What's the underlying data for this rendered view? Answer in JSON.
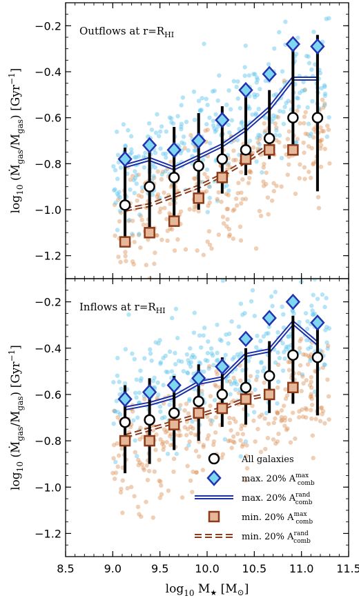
{
  "chart_data": {
    "type": "scatter",
    "x_axis": {
      "label_base": "log",
      "label_sub": "10",
      "label_var": "M",
      "label_star": "★",
      "label_unit_open": "[M",
      "label_unit_sub": "⊙",
      "label_unit_close": "]",
      "xlim": [
        8.5,
        11.5
      ],
      "ticks": [
        8.5,
        9.0,
        9.5,
        10.0,
        10.5,
        11.0,
        11.5
      ],
      "tick_labels": [
        "8.5",
        "9.0",
        "9.5",
        "10.0",
        "10.5",
        "11.0",
        "11.5"
      ]
    },
    "shared_ylabel": {
      "prefix": "log",
      "sub": "10",
      "body": "(Ṁ",
      "sub_gas1": "gas",
      "slash": "/M",
      "sub_gas2": "gas",
      "close": ")",
      "unit": "[Gyr",
      "unit_sup": "−1",
      "unit_close": "]"
    },
    "panels": [
      {
        "name": "outflows",
        "label_text": "Outflows at r=R",
        "label_sub": "HI",
        "ylim": [
          -1.3,
          -0.1
        ],
        "yticks": [
          -1.2,
          -1.0,
          -0.8,
          -0.6,
          -0.4,
          -0.2
        ],
        "ytick_labels": [
          "−1.2",
          "−1.0",
          "−0.8",
          "−0.6",
          "−0.4",
          "−0.2"
        ],
        "series": [
          {
            "name": "All galaxies",
            "marker": "open-circle",
            "x": [
              9.13,
              9.39,
              9.65,
              9.91,
              10.16,
              10.41,
              10.66,
              10.91,
              11.17
            ],
            "y": [
              -0.98,
              -0.9,
              -0.86,
              -0.81,
              -0.78,
              -0.74,
              -0.69,
              -0.6,
              -0.6
            ],
            "y_low": [
              -1.16,
              -1.12,
              -1.05,
              -1.0,
              -0.93,
              -0.85,
              -0.78,
              -0.72,
              -0.92
            ],
            "y_high": [
              -0.73,
              -0.69,
              -0.64,
              -0.58,
              -0.55,
              -0.51,
              -0.48,
              -0.29,
              -0.24
            ]
          },
          {
            "name": "max. 20% A_comb^max",
            "marker": "diamond",
            "color": "#2233b0",
            "fill": "#7fd6f0",
            "x": [
              9.13,
              9.39,
              9.65,
              9.91,
              10.16,
              10.41,
              10.66,
              10.91,
              11.17
            ],
            "y": [
              -0.78,
              -0.72,
              -0.74,
              -0.7,
              -0.61,
              -0.48,
              -0.41,
              -0.28,
              -0.29
            ]
          },
          {
            "name": "max. 20% A_comb^rand",
            "marker": "double-line",
            "color": "#1a2fa8",
            "x": [
              9.13,
              9.39,
              9.65,
              9.91,
              10.16,
              10.41,
              10.66,
              10.91,
              11.17
            ],
            "y": [
              -0.81,
              -0.78,
              -0.82,
              -0.77,
              -0.72,
              -0.65,
              -0.56,
              -0.43,
              -0.43
            ]
          },
          {
            "name": "min. 20% A_comb^max",
            "marker": "square",
            "color": "#8b3a1a",
            "fill": "#e6b899",
            "x": [
              9.13,
              9.39,
              9.65,
              9.91,
              10.16,
              10.41,
              10.66,
              10.91
            ],
            "y": [
              -1.14,
              -1.1,
              -1.05,
              -0.95,
              -0.86,
              -0.78,
              -0.74,
              -0.74
            ]
          },
          {
            "name": "min. 20% A_comb^rand",
            "marker": "double-dash",
            "color": "#8b3a1a",
            "x": [
              9.13,
              9.39,
              9.65,
              9.91,
              10.16,
              10.41,
              10.66
            ],
            "y": [
              -1.0,
              -0.98,
              -0.94,
              -0.9,
              -0.85,
              -0.79,
              -0.72
            ]
          }
        ]
      },
      {
        "name": "inflows",
        "label_text": "Inflows at r=R",
        "label_sub": "HI",
        "ylim": [
          -1.3,
          -0.1
        ],
        "yticks": [
          -1.2,
          -1.0,
          -0.8,
          -0.6,
          -0.4,
          -0.2
        ],
        "ytick_labels": [
          "−1.2",
          "−1.0",
          "−0.8",
          "−0.6",
          "−0.4",
          "−0.2"
        ],
        "series": [
          {
            "name": "All galaxies",
            "marker": "open-circle",
            "x": [
              9.13,
              9.39,
              9.65,
              9.91,
              10.16,
              10.41,
              10.66,
              10.91,
              11.17
            ],
            "y": [
              -0.72,
              -0.71,
              -0.68,
              -0.63,
              -0.6,
              -0.57,
              -0.52,
              -0.43,
              -0.44
            ],
            "y_low": [
              -0.94,
              -0.9,
              -0.84,
              -0.8,
              -0.74,
              -0.73,
              -0.68,
              -0.64,
              -0.69
            ],
            "y_high": [
              -0.56,
              -0.53,
              -0.52,
              -0.47,
              -0.44,
              -0.4,
              -0.37,
              -0.26,
              -0.27
            ]
          },
          {
            "name": "max. 20% A_comb^max",
            "marker": "diamond",
            "color": "#2233b0",
            "fill": "#7fd6f0",
            "x": [
              9.13,
              9.39,
              9.65,
              9.91,
              10.16,
              10.41,
              10.66,
              10.91,
              11.17
            ],
            "y": [
              -0.62,
              -0.59,
              -0.56,
              -0.53,
              -0.48,
              -0.36,
              -0.27,
              -0.2,
              -0.29
            ]
          },
          {
            "name": "max. 20% A_comb^rand",
            "marker": "double-line",
            "color": "#1a2fa8",
            "x": [
              9.13,
              9.39,
              9.65,
              9.91,
              10.16,
              10.41,
              10.66,
              10.91,
              11.17
            ],
            "y": [
              -0.66,
              -0.64,
              -0.61,
              -0.55,
              -0.53,
              -0.43,
              -0.41,
              -0.29,
              -0.38
            ]
          },
          {
            "name": "min. 20% A_comb^max",
            "marker": "square",
            "color": "#8b3a1a",
            "fill": "#e6b899",
            "x": [
              9.13,
              9.39,
              9.65,
              9.91,
              10.16,
              10.41,
              10.66,
              10.91
            ],
            "y": [
              -0.8,
              -0.8,
              -0.73,
              -0.68,
              -0.66,
              -0.62,
              -0.6,
              -0.57
            ]
          },
          {
            "name": "min. 20% A_comb^rand",
            "marker": "double-dash",
            "color": "#8b3a1a",
            "x": [
              9.13,
              9.39,
              9.65,
              9.91,
              10.16,
              10.41,
              10.66
            ],
            "y": [
              -0.78,
              -0.75,
              -0.72,
              -0.69,
              -0.66,
              -0.62,
              -0.6
            ]
          }
        ]
      }
    ],
    "background_scatter": {
      "blue_color": "#5bc4ee",
      "orange_color": "#d98c50",
      "description_hidden": true
    },
    "legend": {
      "placement": "bottom-right of lower panel",
      "entries": [
        {
          "key": "all",
          "text": "All galaxies",
          "sup": "",
          "sub": ""
        },
        {
          "key": "dmax",
          "text": "max. 20% A",
          "sup": "max",
          "sub": "comb"
        },
        {
          "key": "lmax",
          "text": "max. 20% A",
          "sup": "rand",
          "sub": "comb"
        },
        {
          "key": "smin",
          "text": "min. 20% A",
          "sup": "max",
          "sub": "comb"
        },
        {
          "key": "lmin",
          "text": "min. 20% A",
          "sup": "rand",
          "sub": "comb"
        }
      ]
    }
  }
}
